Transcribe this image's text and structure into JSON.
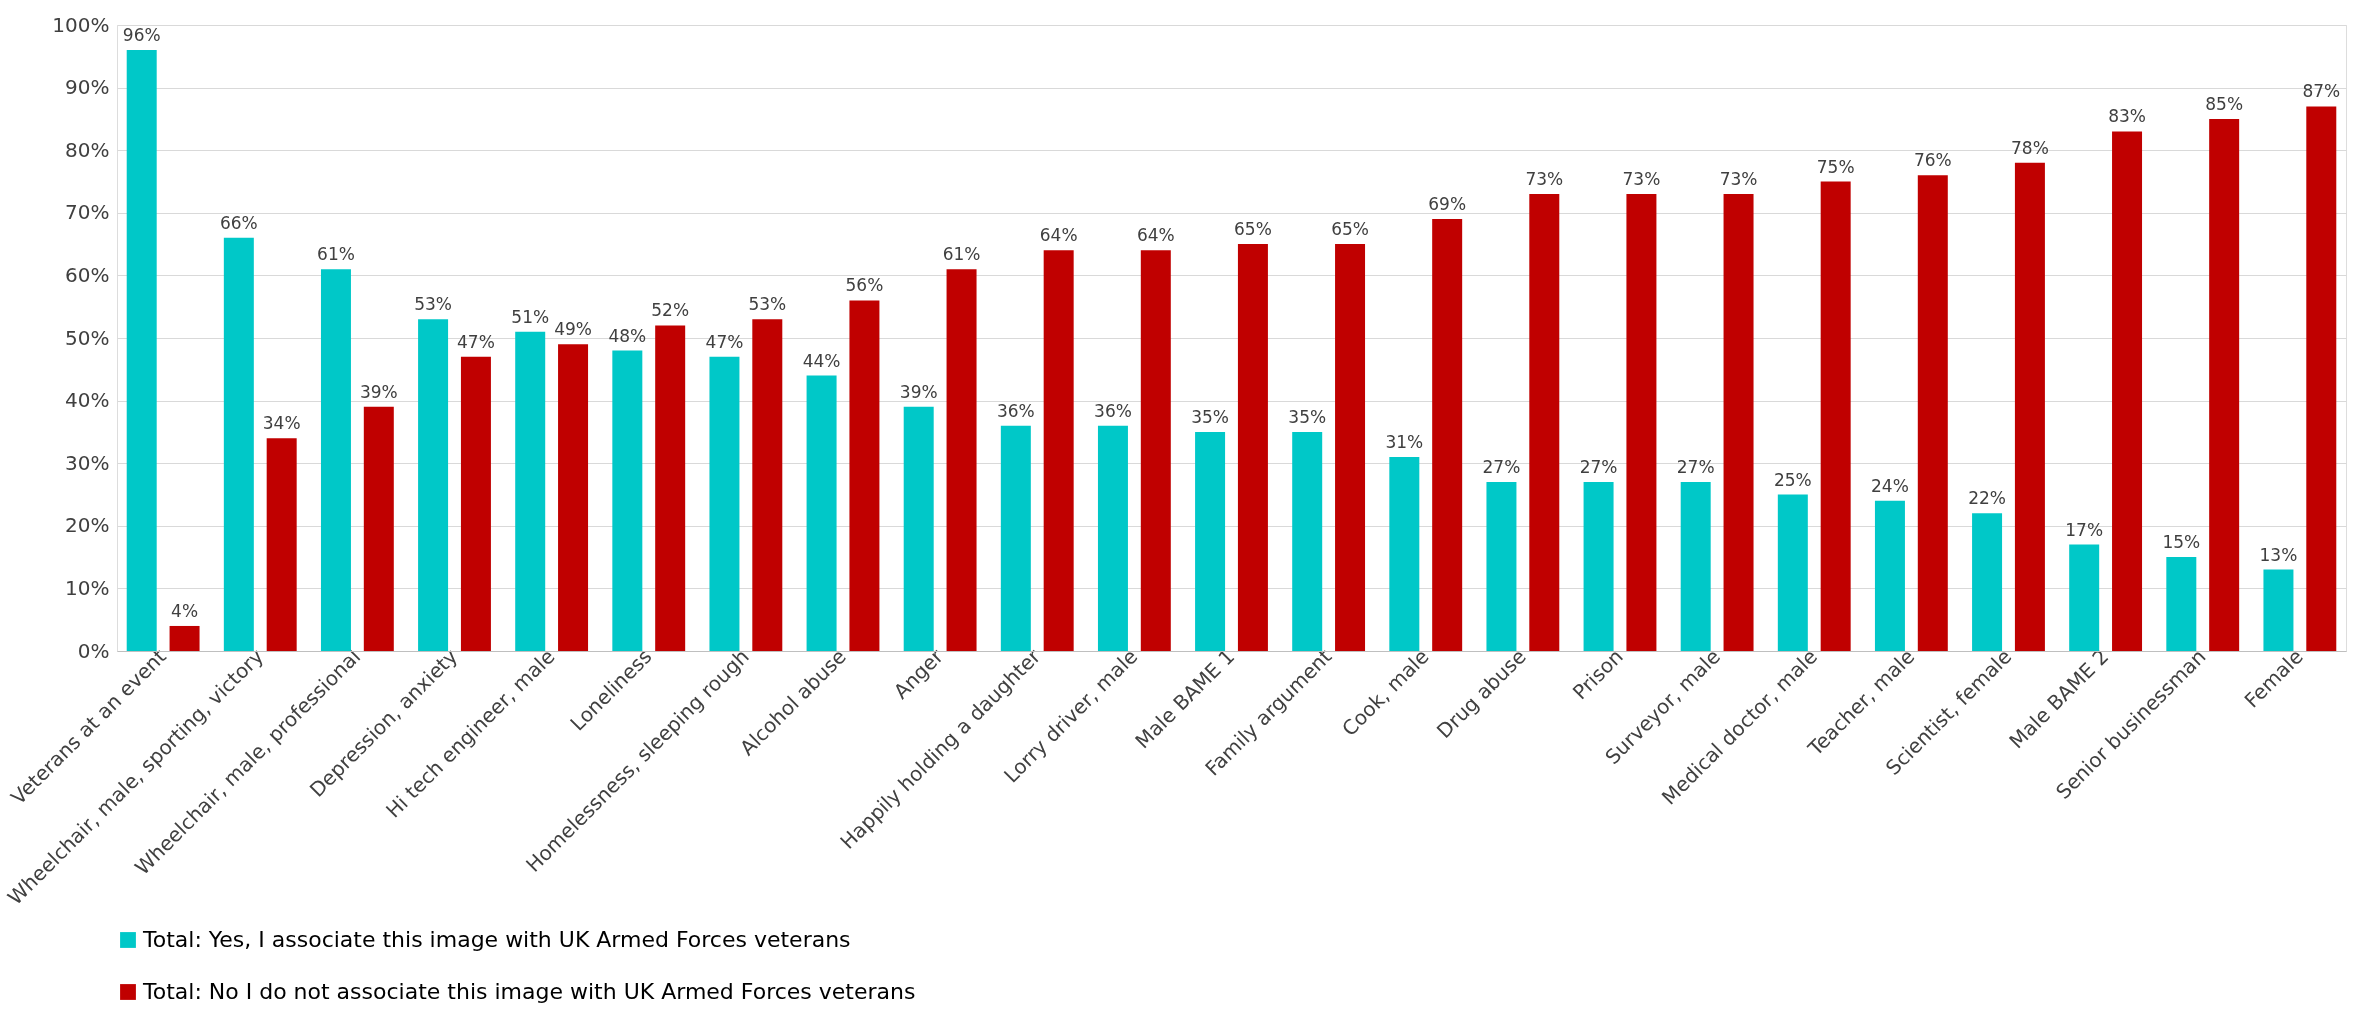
{
  "chart_data": {
    "type": "bar",
    "categories": [
      "Veterans at an event",
      "Wheelchair, male, sporting, victory",
      "Wheelchair, male, professional",
      "Depression, anxiety",
      "Hi tech engineer, male",
      "Loneliness",
      "Homelessness, sleeping rough",
      "Alcohol abuse",
      "Anger",
      "Happily holding a daughter",
      "Lorry driver, male",
      "Male BAME 1",
      "Family argument",
      "Cook, male",
      "Drug abuse",
      "Prison",
      "Surveyor, male",
      "Medical doctor, male",
      "Teacher, male",
      "Scientist, female",
      "Male BAME 2",
      "Senior businessman",
      "Female"
    ],
    "series": [
      {
        "name": "Total: Yes, I associate this image with UK Armed Forces veterans",
        "color": "#00c8c8",
        "values": [
          96,
          66,
          61,
          53,
          51,
          48,
          47,
          44,
          39,
          36,
          36,
          35,
          35,
          31,
          27,
          27,
          27,
          25,
          24,
          22,
          17,
          15,
          13
        ],
        "value_labels": [
          "96%",
          "66%",
          "61%",
          "53%",
          "51%",
          "48%",
          "47%",
          "44%",
          "39%",
          "36%",
          "36%",
          "35%",
          "35%",
          "31%",
          "27%",
          "27%",
          "27%",
          "25%",
          "24%",
          "22%",
          "17%",
          "15%",
          "13%"
        ]
      },
      {
        "name": "Total: No I do not associate this image with UK Armed Forces veterans",
        "color": "#c00000",
        "values": [
          4,
          34,
          39,
          47,
          49,
          52,
          53,
          56,
          61,
          64,
          64,
          65,
          65,
          69,
          73,
          73,
          73,
          75,
          76,
          78,
          83,
          85,
          87
        ],
        "value_labels": [
          "4%",
          "34%",
          "39%",
          "47%",
          "49%",
          "52%",
          "53%",
          "56%",
          "61%",
          "64%",
          "64%",
          "65%",
          "65%",
          "69%",
          "73%",
          "73%",
          "73%",
          "75%",
          "76%",
          "78%",
          "83%",
          "85%",
          "87%"
        ]
      }
    ],
    "ylim": [
      0,
      100
    ],
    "yticks": [
      {
        "value": 0,
        "label": "0%"
      },
      {
        "value": 10,
        "label": "10%"
      },
      {
        "value": 20,
        "label": "20%"
      },
      {
        "value": 30,
        "label": "30%"
      },
      {
        "value": 40,
        "label": "40%"
      },
      {
        "value": 50,
        "label": "50%"
      },
      {
        "value": 60,
        "label": "60%"
      },
      {
        "value": 70,
        "label": "70%"
      },
      {
        "value": 80,
        "label": "80%"
      },
      {
        "value": 90,
        "label": "90%"
      },
      {
        "value": 100,
        "label": "100%"
      }
    ],
    "grid": "y",
    "legend": "bottom"
  }
}
